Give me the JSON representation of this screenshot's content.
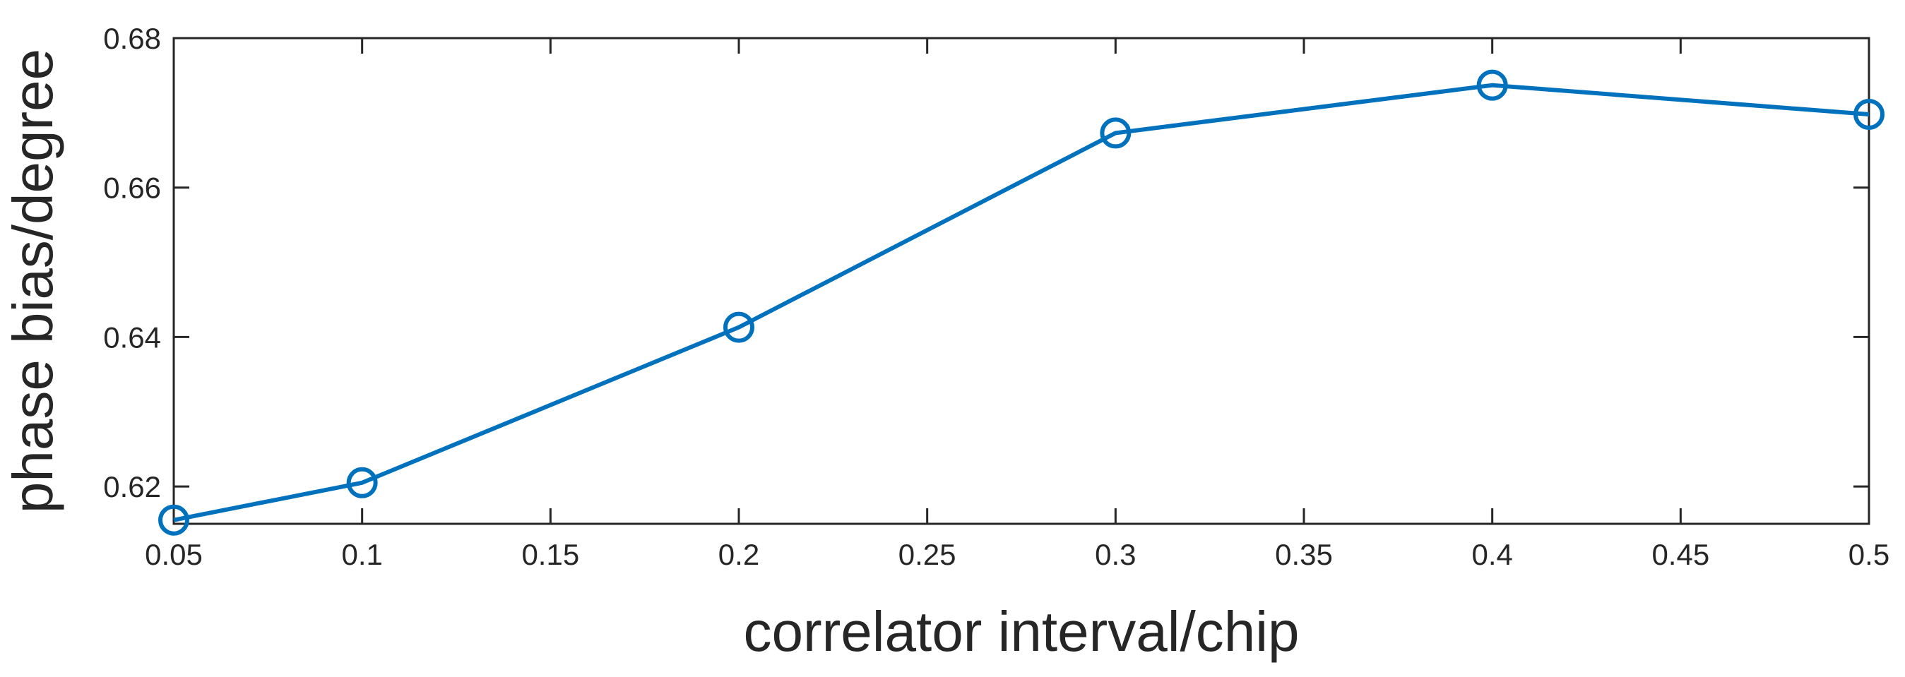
{
  "chart_data": {
    "type": "line",
    "title": "",
    "xlabel": "correlator interval/chip",
    "ylabel": "phase bias/degree",
    "x": [
      0.05,
      0.1,
      0.2,
      0.3,
      0.4,
      0.5
    ],
    "series": [
      {
        "values": [
          0.6155,
          0.6205,
          0.6413,
          0.6673,
          0.6737,
          0.6698
        ],
        "color": "#0072BD",
        "marker": "circle"
      }
    ],
    "xlim": [
      0.05,
      0.5
    ],
    "ylim": [
      0.615,
      0.68
    ],
    "xticks": [
      0.05,
      0.1,
      0.15,
      0.2,
      0.25,
      0.3,
      0.35,
      0.4,
      0.45,
      0.5
    ],
    "xtick_labels": [
      "0.05",
      "0.1",
      "0.15",
      "0.2",
      "0.25",
      "0.3",
      "0.35",
      "0.4",
      "0.45",
      "0.5"
    ],
    "yticks": [
      0.62,
      0.64,
      0.66,
      0.68
    ],
    "ytick_labels": [
      "0.62",
      "0.64",
      "0.66",
      "0.68"
    ],
    "grid": false,
    "box": true
  }
}
